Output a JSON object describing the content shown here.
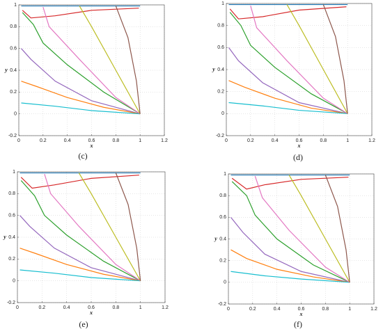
{
  "chart_data": [
    {
      "type": "phase-portrait",
      "caption": "(c)",
      "xlabel": "x",
      "ylabel": "y",
      "xlim": [
        0,
        1.2
      ],
      "ylim": [
        -0.2,
        1
      ],
      "xticks": [
        0,
        0.2,
        0.4,
        0.6,
        0.8,
        1,
        1.2
      ],
      "yticks": [
        -0.2,
        0,
        0.2,
        0.4,
        0.6,
        0.8,
        1
      ],
      "grid": true,
      "series": [
        {
          "color": "#1f77b4",
          "x": [
            0.02,
            0.3,
            0.6,
            1
          ],
          "y": [
            0.99,
            0.99,
            0.99,
            0.99
          ]
        },
        {
          "color": "#d62728",
          "x": [
            0.03,
            0.1,
            0.3,
            0.6,
            0.99
          ],
          "y": [
            0.95,
            0.88,
            0.9,
            0.95,
            0.97
          ]
        },
        {
          "color": "#2ca02c",
          "x": [
            0.03,
            0.12,
            0.2,
            0.4,
            0.7,
            1
          ],
          "y": [
            0.93,
            0.82,
            0.65,
            0.45,
            0.2,
            0
          ]
        },
        {
          "color": "#9467bd",
          "x": [
            0.02,
            0.1,
            0.3,
            0.6,
            1
          ],
          "y": [
            0.6,
            0.5,
            0.3,
            0.12,
            0
          ]
        },
        {
          "color": "#ff7f0e",
          "x": [
            0.02,
            0.15,
            0.4,
            0.7,
            1
          ],
          "y": [
            0.3,
            0.25,
            0.15,
            0.06,
            0
          ]
        },
        {
          "color": "#17becf",
          "x": [
            0.02,
            0.3,
            0.6,
            1
          ],
          "y": [
            0.1,
            0.07,
            0.03,
            0
          ]
        },
        {
          "color": "#e377c2",
          "x": [
            0.2,
            0.25,
            0.5,
            0.8,
            1
          ],
          "y": [
            0.98,
            0.8,
            0.5,
            0.15,
            0
          ]
        },
        {
          "color": "#bcbd22",
          "x": [
            0.5,
            0.6,
            0.8,
            0.95,
            1
          ],
          "y": [
            0.99,
            0.8,
            0.4,
            0.1,
            0
          ]
        },
        {
          "color": "#8c564b",
          "x": [
            0.8,
            0.9,
            0.97,
            1
          ],
          "y": [
            0.99,
            0.7,
            0.3,
            0
          ]
        }
      ]
    },
    {
      "type": "phase-portrait",
      "caption": "(d)",
      "xlabel": "x",
      "ylabel": "y",
      "xlim": [
        0,
        1.2
      ],
      "ylim": [
        -0.2,
        1
      ],
      "xticks": [
        0,
        0.2,
        0.4,
        0.6,
        0.8,
        1,
        1.2
      ],
      "yticks": [
        -0.2,
        0,
        0.2,
        0.4,
        0.6,
        0.8,
        1
      ],
      "grid": true,
      "series": [
        {
          "color": "#1f77b4",
          "x": [
            0.02,
            0.3,
            0.6,
            1
          ],
          "y": [
            0.99,
            0.99,
            0.99,
            0.99
          ]
        },
        {
          "color": "#d62728",
          "x": [
            0.03,
            0.1,
            0.3,
            0.6,
            0.99
          ],
          "y": [
            0.95,
            0.86,
            0.88,
            0.94,
            0.97
          ]
        },
        {
          "color": "#2ca02c",
          "x": [
            0.03,
            0.12,
            0.2,
            0.4,
            0.7,
            1
          ],
          "y": [
            0.92,
            0.8,
            0.62,
            0.42,
            0.18,
            0
          ]
        },
        {
          "color": "#9467bd",
          "x": [
            0.02,
            0.1,
            0.3,
            0.6,
            1
          ],
          "y": [
            0.6,
            0.48,
            0.28,
            0.1,
            0
          ]
        },
        {
          "color": "#ff7f0e",
          "x": [
            0.02,
            0.15,
            0.4,
            0.7,
            1
          ],
          "y": [
            0.3,
            0.24,
            0.14,
            0.05,
            0
          ]
        },
        {
          "color": "#17becf",
          "x": [
            0.02,
            0.3,
            0.6,
            1
          ],
          "y": [
            0.1,
            0.07,
            0.03,
            0
          ]
        },
        {
          "color": "#e377c2",
          "x": [
            0.2,
            0.25,
            0.5,
            0.8,
            1
          ],
          "y": [
            0.98,
            0.78,
            0.48,
            0.14,
            0
          ]
        },
        {
          "color": "#bcbd22",
          "x": [
            0.5,
            0.6,
            0.8,
            0.95,
            1
          ],
          "y": [
            0.99,
            0.8,
            0.4,
            0.1,
            0
          ]
        },
        {
          "color": "#8c564b",
          "x": [
            0.8,
            0.9,
            0.97,
            1
          ],
          "y": [
            0.99,
            0.7,
            0.3,
            0
          ]
        }
      ]
    },
    {
      "type": "phase-portrait",
      "caption": "(e)",
      "xlabel": "x",
      "ylabel": "y",
      "xlim": [
        0,
        1.2
      ],
      "ylim": [
        -0.2,
        1
      ],
      "xticks": [
        0,
        0.2,
        0.4,
        0.6,
        0.8,
        1,
        1.2
      ],
      "yticks": [
        -0.2,
        0,
        0.2,
        0.4,
        0.6,
        0.8,
        1
      ],
      "grid": true,
      "series": [
        {
          "color": "#1f77b4",
          "x": [
            0.02,
            0.3,
            0.6,
            1
          ],
          "y": [
            0.99,
            0.99,
            0.99,
            0.99
          ]
        },
        {
          "color": "#d62728",
          "x": [
            0.03,
            0.12,
            0.3,
            0.6,
            0.99
          ],
          "y": [
            0.95,
            0.85,
            0.88,
            0.94,
            0.97
          ]
        },
        {
          "color": "#2ca02c",
          "x": [
            0.03,
            0.14,
            0.22,
            0.4,
            0.7,
            1
          ],
          "y": [
            0.92,
            0.78,
            0.6,
            0.42,
            0.18,
            0
          ]
        },
        {
          "color": "#9467bd",
          "x": [
            0.02,
            0.1,
            0.3,
            0.6,
            1
          ],
          "y": [
            0.6,
            0.5,
            0.3,
            0.12,
            0
          ]
        },
        {
          "color": "#ff7f0e",
          "x": [
            0.02,
            0.15,
            0.4,
            0.7,
            1
          ],
          "y": [
            0.3,
            0.25,
            0.15,
            0.06,
            0
          ]
        },
        {
          "color": "#17becf",
          "x": [
            0.02,
            0.3,
            0.6,
            1
          ],
          "y": [
            0.1,
            0.07,
            0.03,
            0
          ]
        },
        {
          "color": "#e377c2",
          "x": [
            0.22,
            0.27,
            0.5,
            0.8,
            1
          ],
          "y": [
            0.98,
            0.8,
            0.5,
            0.15,
            0
          ]
        },
        {
          "color": "#bcbd22",
          "x": [
            0.5,
            0.6,
            0.8,
            0.95,
            1
          ],
          "y": [
            0.99,
            0.8,
            0.4,
            0.1,
            0
          ]
        },
        {
          "color": "#8c564b",
          "x": [
            0.8,
            0.9,
            0.97,
            1
          ],
          "y": [
            0.99,
            0.7,
            0.3,
            0
          ]
        }
      ]
    },
    {
      "type": "phase-portrait",
      "caption": "(f)",
      "xlabel": "x",
      "ylabel": "y",
      "xlim": [
        0,
        1.2
      ],
      "ylim": [
        -0.2,
        1
      ],
      "xticks": [
        0,
        0.2,
        0.4,
        0.6,
        0.8,
        1,
        1.2
      ],
      "yticks": [
        -0.2,
        0,
        0.2,
        0.4,
        0.6,
        0.8,
        1
      ],
      "grid": true,
      "series": [
        {
          "color": "#1f77b4",
          "x": [
            0.02,
            0.3,
            0.6,
            1
          ],
          "y": [
            0.99,
            0.99,
            0.99,
            0.99
          ]
        },
        {
          "color": "#d62728",
          "x": [
            0.03,
            0.15,
            0.3,
            0.6,
            0.99
          ],
          "y": [
            0.96,
            0.86,
            0.9,
            0.95,
            0.97
          ]
        },
        {
          "color": "#2ca02c",
          "x": [
            0.03,
            0.15,
            0.22,
            0.4,
            0.7,
            1
          ],
          "y": [
            0.93,
            0.8,
            0.62,
            0.4,
            0.16,
            0
          ]
        },
        {
          "color": "#9467bd",
          "x": [
            0.02,
            0.12,
            0.3,
            0.6,
            1
          ],
          "y": [
            0.6,
            0.46,
            0.26,
            0.1,
            0
          ]
        },
        {
          "color": "#ff7f0e",
          "x": [
            0.02,
            0.15,
            0.4,
            0.7,
            1
          ],
          "y": [
            0.3,
            0.22,
            0.12,
            0.05,
            0
          ]
        },
        {
          "color": "#17becf",
          "x": [
            0.02,
            0.3,
            0.6,
            1
          ],
          "y": [
            0.1,
            0.06,
            0.03,
            0
          ]
        },
        {
          "color": "#e377c2",
          "x": [
            0.22,
            0.28,
            0.5,
            0.8,
            1
          ],
          "y": [
            0.98,
            0.78,
            0.48,
            0.14,
            0
          ]
        },
        {
          "color": "#bcbd22",
          "x": [
            0.5,
            0.6,
            0.8,
            0.95,
            1
          ],
          "y": [
            0.99,
            0.8,
            0.4,
            0.1,
            0
          ]
        },
        {
          "color": "#8c564b",
          "x": [
            0.8,
            0.9,
            0.97,
            1
          ],
          "y": [
            0.99,
            0.7,
            0.3,
            0
          ]
        }
      ]
    }
  ]
}
